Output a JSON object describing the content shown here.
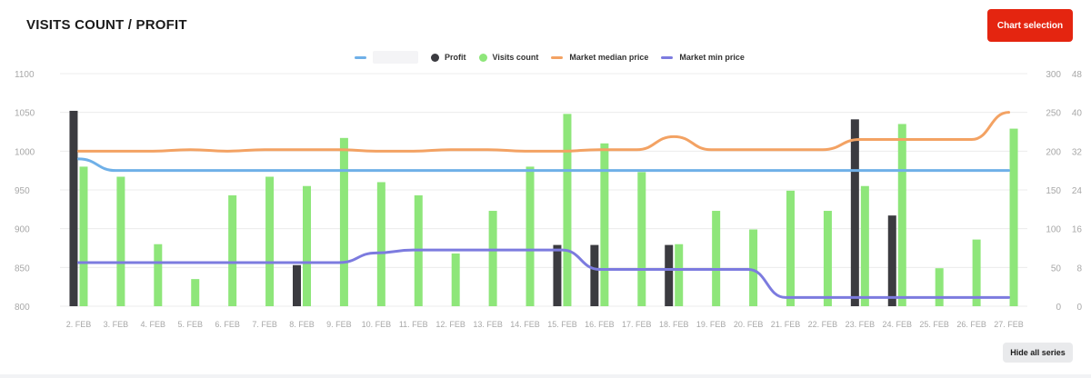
{
  "header": {
    "title": "VISITS COUNT / PROFIT",
    "chart_selection_label": "Chart selection"
  },
  "footer": {
    "hide_all_label": "Hide all series"
  },
  "colors": {
    "hidden_series": "#6fb0e8",
    "profit": "#3b3b40",
    "visits": "#8ee67a",
    "median": "#f3a263",
    "min": "#7c7bdf"
  },
  "chart_data": {
    "type": "bar",
    "categories": [
      "2. FEB",
      "3. FEB",
      "4. FEB",
      "5. FEB",
      "6. FEB",
      "7. FEB",
      "8. FEB",
      "9. FEB",
      "10. FEB",
      "11. FEB",
      "12. FEB",
      "13. FEB",
      "14. FEB",
      "15. FEB",
      "16. FEB",
      "17. FEB",
      "18. FEB",
      "19. FEB",
      "20. FEB",
      "21. FEB",
      "22. FEB",
      "23. FEB",
      "24. FEB",
      "25. FEB",
      "26. FEB",
      "27. FEB"
    ],
    "axes": {
      "left": {
        "ylim": [
          800,
          1100
        ],
        "ticks": [
          800,
          850,
          900,
          950,
          1000,
          1050,
          1100
        ]
      },
      "right1": {
        "ylim": [
          0,
          300
        ],
        "ticks": [
          0,
          50,
          100,
          150,
          200,
          250,
          300
        ]
      },
      "right2": {
        "ylim": [
          0,
          48
        ],
        "ticks": [
          0,
          8,
          16,
          24,
          32,
          40,
          48
        ]
      }
    },
    "grid": true,
    "legend_position": "top-center",
    "series": [
      {
        "name": "",
        "type": "line",
        "axis": "left",
        "values": [
          990,
          975,
          975,
          975,
          975,
          975,
          975,
          975,
          975,
          975,
          975,
          975,
          975,
          975,
          975,
          975,
          975,
          975,
          975,
          975,
          975,
          975,
          975,
          975,
          975,
          975
        ]
      },
      {
        "name": "Profit",
        "type": "bar",
        "axis": "left",
        "values": [
          1052,
          null,
          null,
          null,
          null,
          null,
          853,
          null,
          null,
          null,
          null,
          null,
          null,
          879,
          879,
          null,
          879,
          null,
          null,
          null,
          null,
          1041,
          917,
          null,
          null,
          null
        ]
      },
      {
        "name": "Visits count",
        "type": "bar",
        "axis": "right1",
        "values": [
          180,
          167,
          80,
          35,
          143,
          167,
          155,
          217,
          160,
          143,
          68,
          123,
          180,
          248,
          210,
          173,
          80,
          123,
          99,
          149,
          123,
          155,
          235,
          49,
          86,
          229
        ]
      },
      {
        "name": "Market median price",
        "type": "line",
        "axis": "right2",
        "values": [
          32,
          32,
          32,
          32.3,
          32,
          32.3,
          32.3,
          32.3,
          32,
          32,
          32.3,
          32.3,
          32,
          32,
          32.3,
          32.3,
          35,
          32.3,
          32.3,
          32.3,
          32.3,
          34.4,
          34.4,
          34.4,
          34.4,
          40
        ]
      },
      {
        "name": "Market min price",
        "type": "line",
        "axis": "right2",
        "values": [
          9,
          9,
          9,
          9,
          9,
          9,
          9,
          9,
          11,
          11.6,
          11.6,
          11.6,
          11.6,
          11.6,
          7.6,
          7.6,
          7.6,
          7.6,
          7.6,
          1.8,
          1.8,
          1.8,
          1.8,
          1.8,
          1.8,
          1.8
        ]
      }
    ],
    "right_axis_extra_labels": {
      "right1": [
        "300",
        "250",
        "200",
        "150",
        "100",
        "50",
        "0"
      ],
      "right2": [
        "48",
        "40",
        "32",
        "24",
        "16",
        "8",
        "0"
      ]
    }
  }
}
